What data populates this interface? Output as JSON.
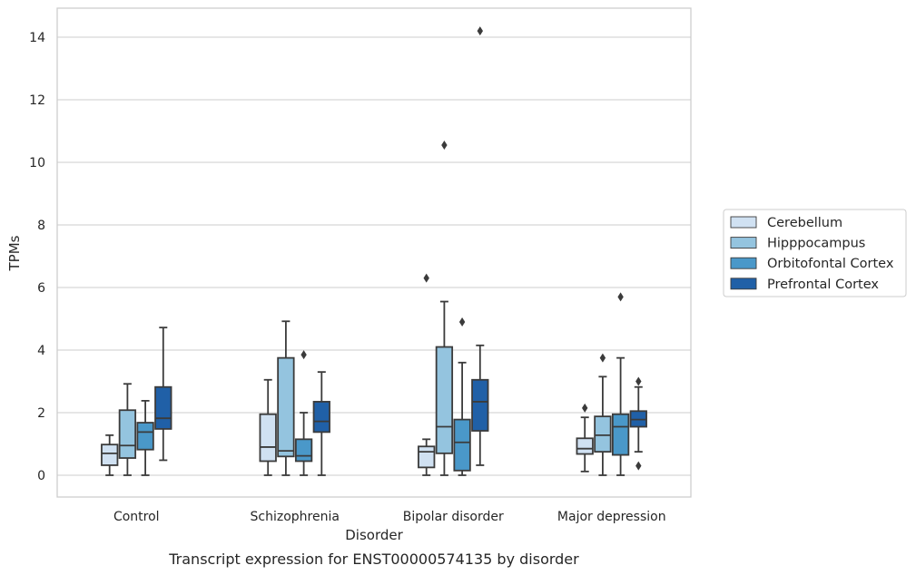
{
  "chart_data": {
    "type": "boxplot",
    "xlabel": "Disorder",
    "ylabel": "TPMs",
    "caption": "Transcript expression for ENST00000574135 by disorder",
    "ylim": [
      -0.7,
      14.9
    ],
    "yticks": [
      0,
      2,
      4,
      6,
      8,
      10,
      12,
      14
    ],
    "grid": "horizontal",
    "legend_position": "right",
    "categories": [
      "Control",
      "Schizophrenia",
      "Bipolar disorder",
      "Major depression"
    ],
    "series": [
      {
        "name": "Cerebellum",
        "color": "#d0e1f2",
        "boxes": [
          {
            "whisker_low": 0.0,
            "q1": 0.32,
            "median": 0.7,
            "q3": 0.98,
            "whisker_high": 1.28,
            "outliers": []
          },
          {
            "whisker_low": 0.0,
            "q1": 0.45,
            "median": 0.9,
            "q3": 1.95,
            "whisker_high": 3.05,
            "outliers": []
          },
          {
            "whisker_low": 0.0,
            "q1": 0.25,
            "median": 0.75,
            "q3": 0.92,
            "whisker_high": 1.15,
            "outliers": [
              6.3
            ]
          },
          {
            "whisker_low": 0.12,
            "q1": 0.68,
            "median": 0.85,
            "q3": 1.18,
            "whisker_high": 1.85,
            "outliers": [
              2.15
            ]
          }
        ]
      },
      {
        "name": "Hipppocampus",
        "color": "#94c4df",
        "boxes": [
          {
            "whisker_low": 0.0,
            "q1": 0.55,
            "median": 0.95,
            "q3": 2.08,
            "whisker_high": 2.92,
            "outliers": []
          },
          {
            "whisker_low": 0.0,
            "q1": 0.6,
            "median": 0.78,
            "q3": 3.75,
            "whisker_high": 4.92,
            "outliers": []
          },
          {
            "whisker_low": 0.0,
            "q1": 0.7,
            "median": 1.55,
            "q3": 4.1,
            "whisker_high": 5.55,
            "outliers": [
              10.55
            ]
          },
          {
            "whisker_low": 0.0,
            "q1": 0.75,
            "median": 1.28,
            "q3": 1.88,
            "whisker_high": 3.15,
            "outliers": [
              3.75
            ]
          }
        ]
      },
      {
        "name": "Orbitofontal Cortex",
        "color": "#4a98c9",
        "boxes": [
          {
            "whisker_low": 0.0,
            "q1": 0.82,
            "median": 1.38,
            "q3": 1.68,
            "whisker_high": 2.38,
            "outliers": []
          },
          {
            "whisker_low": 0.0,
            "q1": 0.45,
            "median": 0.62,
            "q3": 1.15,
            "whisker_high": 2.0,
            "outliers": [
              3.85
            ]
          },
          {
            "whisker_low": 0.0,
            "q1": 0.15,
            "median": 1.05,
            "q3": 1.78,
            "whisker_high": 3.6,
            "outliers": [
              4.9
            ]
          },
          {
            "whisker_low": 0.0,
            "q1": 0.65,
            "median": 1.55,
            "q3": 1.95,
            "whisker_high": 3.75,
            "outliers": [
              5.7
            ]
          }
        ]
      },
      {
        "name": "Prefrontal Cortex",
        "color": "#2060a7",
        "boxes": [
          {
            "whisker_low": 0.48,
            "q1": 1.48,
            "median": 1.82,
            "q3": 2.82,
            "whisker_high": 4.72,
            "outliers": []
          },
          {
            "whisker_low": 0.0,
            "q1": 1.38,
            "median": 1.72,
            "q3": 2.35,
            "whisker_high": 3.3,
            "outliers": []
          },
          {
            "whisker_low": 0.32,
            "q1": 1.42,
            "median": 2.35,
            "q3": 3.05,
            "whisker_high": 4.15,
            "outliers": [
              14.2
            ]
          },
          {
            "whisker_low": 0.75,
            "q1": 1.55,
            "median": 1.78,
            "q3": 2.05,
            "whisker_high": 2.82,
            "outliers": [
              0.3,
              3.0
            ]
          }
        ]
      }
    ]
  }
}
